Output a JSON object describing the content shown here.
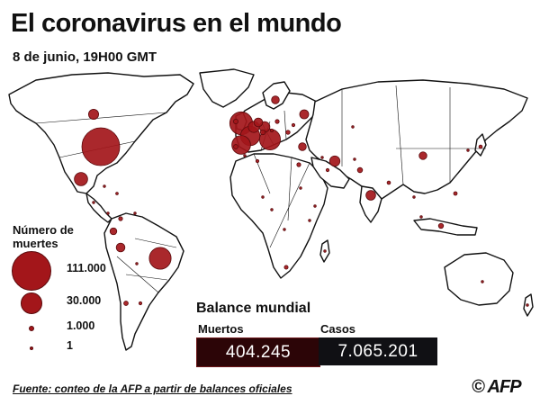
{
  "header": {
    "title": "El coronavirus en el mundo",
    "subtitle": "8 de junio, 19H00 GMT"
  },
  "legend": {
    "title": "Número de muertes",
    "items": [
      {
        "label": "111.000",
        "value": 111000
      },
      {
        "label": "30.000",
        "value": 30000
      },
      {
        "label": "1.000",
        "value": 1000
      },
      {
        "label": "1",
        "value": 1
      }
    ]
  },
  "balance": {
    "title": "Balance mundial",
    "deaths_label": "Muertos",
    "deaths_value": "404.245",
    "cases_label": "Casos",
    "cases_value": "7.065.201"
  },
  "footer": {
    "source": "Fuente: conteo de la AFP a partir de balances oficiales",
    "logo": "© AFP"
  },
  "colors": {
    "bubble": "#a3161a",
    "bubble_stroke": "#5a0a0c",
    "land": "#ffffff",
    "border": "#111111"
  },
  "regions": [
    {
      "name": "United States",
      "deaths": 111000
    },
    {
      "name": "Brazil",
      "deaths": 37000
    },
    {
      "name": "United Kingdom",
      "deaths": 40500
    },
    {
      "name": "Italy",
      "deaths": 33900
    },
    {
      "name": "France",
      "deaths": 29200
    },
    {
      "name": "Spain",
      "deaths": 27100
    },
    {
      "name": "Mexico",
      "deaths": 13700
    },
    {
      "name": "Belgium",
      "deaths": 9600
    },
    {
      "name": "Germany",
      "deaths": 8700
    },
    {
      "name": "Iran",
      "deaths": 8300
    },
    {
      "name": "Canada",
      "deaths": 7900
    },
    {
      "name": "Peru",
      "deaths": 5900
    },
    {
      "name": "Netherlands",
      "deaths": 6000
    },
    {
      "name": "Russia",
      "deaths": 6300
    },
    {
      "name": "India",
      "deaths": 7200
    },
    {
      "name": "Sweden",
      "deaths": 4700
    },
    {
      "name": "Turkey",
      "deaths": 4700
    },
    {
      "name": "China",
      "deaths": 4600
    },
    {
      "name": "Ecuador",
      "deaths": 3600
    },
    {
      "name": "Chile",
      "deaths": 1500
    },
    {
      "name": "Colombia",
      "deaths": 1200
    },
    {
      "name": "Pakistan",
      "deaths": 2000
    },
    {
      "name": "Indonesia",
      "deaths": 1900
    },
    {
      "name": "Egypt",
      "deaths": 1200
    },
    {
      "name": "Switzerland",
      "deaths": 1900
    },
    {
      "name": "Ireland",
      "deaths": 1700
    },
    {
      "name": "Portugal",
      "deaths": 1500
    },
    {
      "name": "Romania",
      "deaths": 1300
    },
    {
      "name": "Poland",
      "deaths": 1200
    },
    {
      "name": "Austria",
      "deaths": 670
    },
    {
      "name": "Saudi Arabia",
      "deaths": 700
    },
    {
      "name": "Bangladesh",
      "deaths": 900
    },
    {
      "name": "Argentina",
      "deaths": 700
    },
    {
      "name": "Bolivia",
      "deaths": 400
    },
    {
      "name": "Algeria",
      "deaths": 700
    },
    {
      "name": "South Africa",
      "deaths": 1100
    },
    {
      "name": "Philippines",
      "deaths": 1000
    },
    {
      "name": "Japan",
      "deaths": 900
    },
    {
      "name": "Iraq",
      "deaths": 300
    },
    {
      "name": "Nigeria",
      "deaths": 300
    },
    {
      "name": "Ukraine",
      "deaths": 700
    },
    {
      "name": "Afghanistan",
      "deaths": 400
    },
    {
      "name": "Australia",
      "deaths": 100
    },
    {
      "name": "South Korea",
      "deaths": 270
    },
    {
      "name": "Dominican Rep.",
      "deaths": 500
    },
    {
      "name": "Panama",
      "deaths": 400
    },
    {
      "name": "Guatemala",
      "deaths": 200
    },
    {
      "name": "Cuba",
      "deaths": 80
    },
    {
      "name": "Morocco",
      "deaths": 200
    },
    {
      "name": "Cameroon",
      "deaths": 200
    },
    {
      "name": "Sudan",
      "deaths": 300
    },
    {
      "name": "Kazakhstan",
      "deaths": 50
    },
    {
      "name": "Malaysia",
      "deaths": 120
    },
    {
      "name": "Thailand",
      "deaths": 60
    },
    {
      "name": "New Zealand",
      "deaths": 22
    },
    {
      "name": "Venezuela",
      "deaths": 20
    },
    {
      "name": "Kenya",
      "deaths": 80
    },
    {
      "name": "Ethiopia",
      "deaths": 30
    },
    {
      "name": "DR Congo",
      "deaths": 90
    },
    {
      "name": "Madagascar",
      "deaths": 7
    }
  ]
}
